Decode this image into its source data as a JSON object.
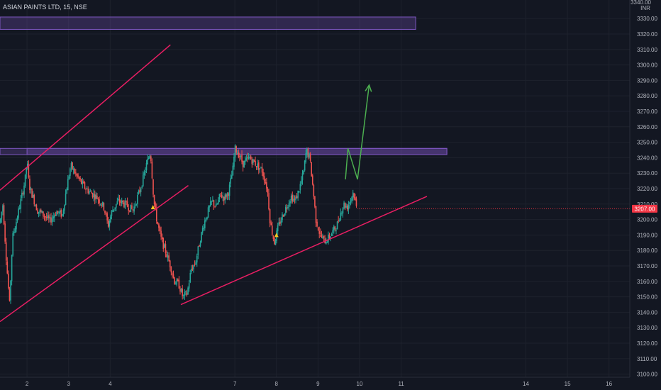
{
  "header": {
    "title": "ASIAN PAINTS LTD, 15, NSE"
  },
  "price_axis": {
    "currency": "INR",
    "top_label": "3340.00"
  },
  "last_price": {
    "label": "3207.00",
    "color": "#f23645"
  },
  "chart_data": {
    "type": "candlestick",
    "title": "ASIAN PAINTS LTD, 15, NSE",
    "ylim": [
      3098,
      3342
    ],
    "y_ticks": [
      3100,
      3110,
      3120,
      3130,
      3140,
      3150,
      3160,
      3170,
      3180,
      3190,
      3200,
      3210,
      3220,
      3230,
      3240,
      3250,
      3260,
      3270,
      3280,
      3290,
      3300,
      3310,
      3320,
      3330
    ],
    "y_tick_labels": [
      "3100.00",
      "3110.00",
      "3120.00",
      "3130.00",
      "3140.00",
      "3150.00",
      "3160.00",
      "3170.00",
      "3180.00",
      "3190.00",
      "3200.00",
      "3210.00",
      "3220.00",
      "3230.00",
      "3240.00",
      "3250.00",
      "3260.00",
      "3270.00",
      "3280.00",
      "3290.00",
      "3300.00",
      "3310.00",
      "3320.00",
      "3330.00"
    ],
    "xlim": [
      1.35,
      16.5
    ],
    "x_ticks": [
      2,
      3,
      4,
      7,
      8,
      9,
      10,
      11,
      14,
      15,
      16
    ],
    "x_tick_labels": [
      "2",
      "3",
      "4",
      "7",
      "8",
      "9",
      "10",
      "11",
      "14",
      "15",
      "16"
    ],
    "session_x": [
      1.35,
      2,
      3,
      4,
      5,
      6,
      7,
      8,
      9,
      9.6
    ],
    "session_labels": [
      "",
      "2",
      "3",
      "4",
      "7",
      "8",
      "9",
      "10",
      "11",
      "14"
    ],
    "up_color": "#26a69a",
    "down_color": "#ef5350",
    "anchors": [
      [
        1.35,
        3198
      ],
      [
        1.42,
        3210
      ],
      [
        1.5,
        3175
      ],
      [
        1.58,
        3145
      ],
      [
        1.65,
        3188
      ],
      [
        1.75,
        3200
      ],
      [
        1.85,
        3212
      ],
      [
        1.95,
        3225
      ],
      [
        2.0,
        3238
      ],
      [
        2.05,
        3222
      ],
      [
        2.15,
        3214
      ],
      [
        2.25,
        3206
      ],
      [
        2.4,
        3203
      ],
      [
        2.55,
        3199
      ],
      [
        2.7,
        3205
      ],
      [
        2.85,
        3203
      ],
      [
        2.95,
        3220
      ],
      [
        3.05,
        3235
      ],
      [
        3.2,
        3228
      ],
      [
        3.35,
        3222
      ],
      [
        3.5,
        3218
      ],
      [
        3.7,
        3214
      ],
      [
        3.85,
        3208
      ],
      [
        3.95,
        3196
      ],
      [
        4.05,
        3206
      ],
      [
        4.2,
        3212
      ],
      [
        4.35,
        3210
      ],
      [
        4.55,
        3206
      ],
      [
        4.75,
        3222
      ],
      [
        4.88,
        3236
      ],
      [
        4.97,
        3244
      ],
      [
        5.05,
        3212
      ],
      [
        5.12,
        3200
      ],
      [
        5.22,
        3188
      ],
      [
        5.35,
        3178
      ],
      [
        5.45,
        3170
      ],
      [
        5.55,
        3160
      ],
      [
        5.65,
        3158
      ],
      [
        5.75,
        3150
      ],
      [
        5.85,
        3152
      ],
      [
        5.95,
        3168
      ],
      [
        6.05,
        3172
      ],
      [
        6.15,
        3185
      ],
      [
        6.25,
        3197
      ],
      [
        6.35,
        3205
      ],
      [
        6.45,
        3212
      ],
      [
        6.55,
        3208
      ],
      [
        6.65,
        3216
      ],
      [
        6.75,
        3214
      ],
      [
        6.85,
        3218
      ],
      [
        6.95,
        3232
      ],
      [
        7.0,
        3246
      ],
      [
        7.1,
        3242
      ],
      [
        7.2,
        3236
      ],
      [
        7.35,
        3240
      ],
      [
        7.5,
        3236
      ],
      [
        7.65,
        3232
      ],
      [
        7.78,
        3220
      ],
      [
        7.85,
        3198
      ],
      [
        7.95,
        3185
      ],
      [
        8.05,
        3196
      ],
      [
        8.2,
        3206
      ],
      [
        8.35,
        3215
      ],
      [
        8.45,
        3212
      ],
      [
        8.55,
        3220
      ],
      [
        8.65,
        3230
      ],
      [
        8.72,
        3245
      ],
      [
        8.8,
        3240
      ],
      [
        8.88,
        3220
      ],
      [
        8.95,
        3200
      ],
      [
        9.05,
        3190
      ],
      [
        9.15,
        3186
      ],
      [
        9.25,
        3188
      ],
      [
        9.35,
        3192
      ],
      [
        9.45,
        3196
      ],
      [
        9.55,
        3205
      ],
      [
        9.62,
        3210
      ],
      [
        9.7,
        3208
      ],
      [
        9.78,
        3213
      ],
      [
        9.85,
        3218
      ],
      [
        9.93,
        3207
      ]
    ],
    "annotations": [
      {
        "type": "zone",
        "x0": 1.35,
        "x1": 11.35,
        "y0": 3323,
        "y1": 3331
      },
      {
        "type": "zone",
        "x0": 1.35,
        "x1": 12.1,
        "y0": 3242,
        "y1": 3246
      },
      {
        "type": "zone",
        "x0": 2.0,
        "x1": 12.1,
        "y0": 3242,
        "y1": 3246
      },
      {
        "type": "trendline",
        "points": [
          [
            1.35,
            3219
          ],
          [
            5.45,
            3313
          ]
        ]
      },
      {
        "type": "trendline",
        "points": [
          [
            1.35,
            3134
          ],
          [
            5.88,
            3222
          ]
        ]
      },
      {
        "type": "trendline",
        "points": [
          [
            5.7,
            3145
          ],
          [
            11.62,
            3215
          ]
        ]
      },
      {
        "type": "projection",
        "points": [
          [
            9.66,
            3226
          ],
          [
            9.72,
            3246
          ],
          [
            9.95,
            3226
          ],
          [
            10.23,
            3287
          ]
        ]
      },
      {
        "type": "marker",
        "x": 5.03,
        "y": 3208
      },
      {
        "type": "marker",
        "x": 8.0,
        "y": 3190
      }
    ]
  }
}
